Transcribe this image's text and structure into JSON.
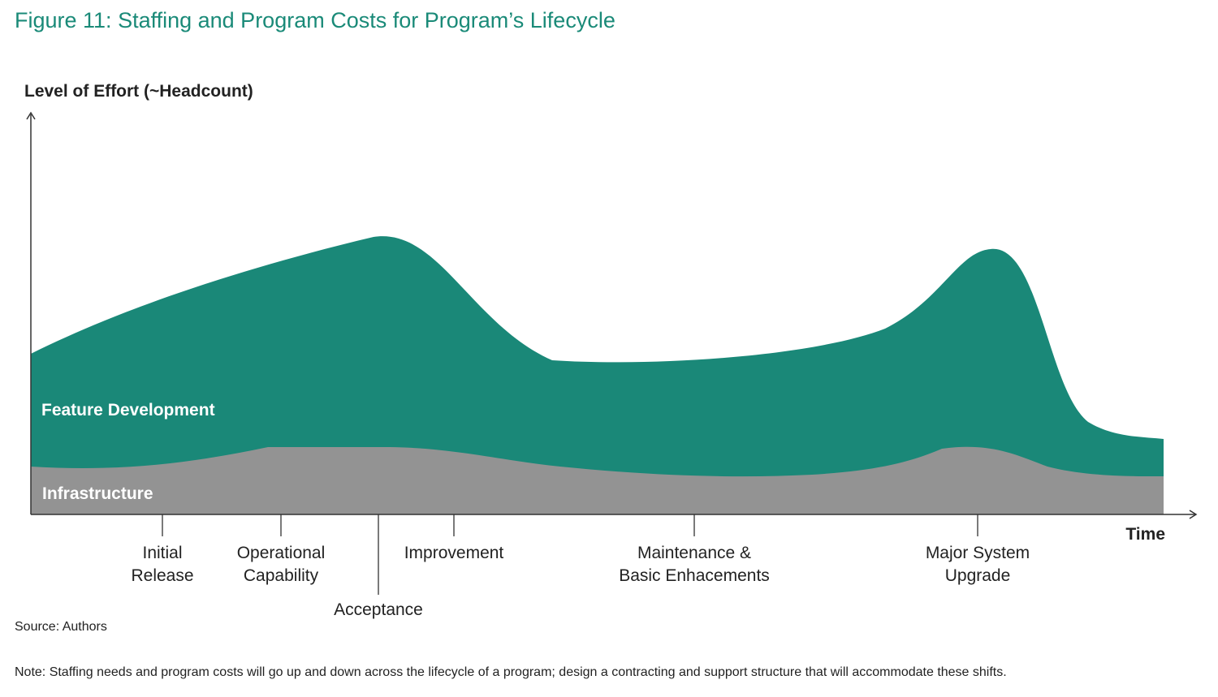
{
  "figure": {
    "title": "Figure 11: Staffing and Program Costs for Program’s Lifecycle",
    "source": "Source: Authors",
    "note": "Note: Staffing needs and program costs will go up and down across the lifecycle of a program; design a contracting and support structure that will accommodate these shifts."
  },
  "chart_data": {
    "type": "area",
    "stacked": true,
    "ylabel": "Level of Effort (~Headcount)",
    "xlabel": "Time",
    "grid": false,
    "legend": "none",
    "series": [
      {
        "name": "Infrastructure",
        "color": "#939393"
      },
      {
        "name": "Feature Development",
        "color": "#1a8878"
      }
    ],
    "milestones": [
      {
        "key": "initial_release",
        "lines": [
          "Initial",
          "Release"
        ]
      },
      {
        "key": "operational_capability",
        "lines": [
          "Operational",
          "Capability"
        ]
      },
      {
        "key": "acceptance",
        "lines": [
          "Acceptance"
        ]
      },
      {
        "key": "improvement",
        "lines": [
          "Improvement"
        ]
      },
      {
        "key": "maintenance",
        "lines": [
          "Maintenance &",
          "Basic Enhacements"
        ]
      },
      {
        "key": "major_upgrade",
        "lines": [
          "Major System",
          "Upgrade"
        ]
      }
    ]
  }
}
